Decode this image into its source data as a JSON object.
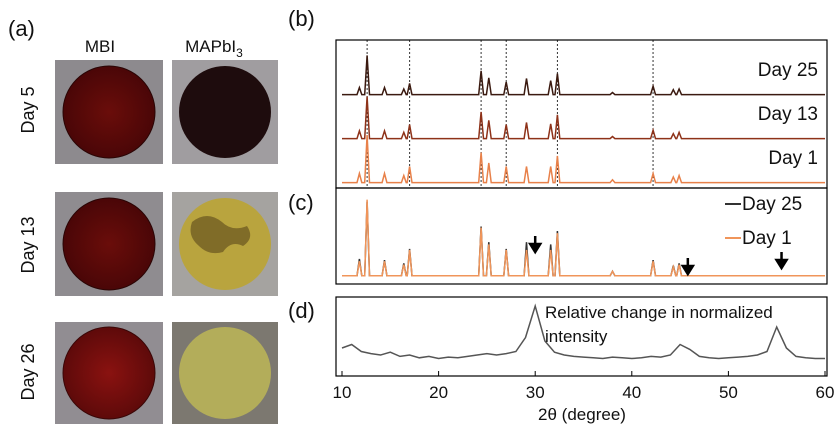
{
  "panel_a": {
    "label": "(a)",
    "columns": [
      {
        "text": "MBI"
      },
      {
        "text": "MAPbI",
        "subscript": "3"
      }
    ],
    "rows": [
      "Day 5",
      "Day 13",
      "Day 26"
    ]
  },
  "chart_data": [
    {
      "type": "line",
      "label": "(b)",
      "xlim": [
        10,
        60
      ],
      "reference_lines": [
        12.6,
        17,
        24.4,
        27,
        32.3,
        42.2
      ],
      "x": [
        10,
        11.55,
        11.8,
        12.05,
        12.35,
        12.6,
        12.85,
        14.15,
        14.4,
        14.65,
        16.15,
        16.4,
        16.65,
        16.75,
        17,
        17.25,
        24.15,
        24.4,
        24.65,
        24.95,
        25.2,
        25.45,
        26.75,
        27,
        27.25,
        28.85,
        29.1,
        29.35,
        31.35,
        31.6,
        31.85,
        32.05,
        32.3,
        32.55,
        37.75,
        38,
        38.25,
        41.95,
        42.2,
        42.45,
        44.05,
        44.3,
        44.55,
        44.65,
        44.9,
        45.15,
        60
      ],
      "series": [
        {
          "name": "Day 25",
          "color": "#3b1a10",
          "values": [
            2,
            2,
            12,
            2,
            2,
            58,
            2,
            2,
            12,
            2,
            2,
            10,
            2,
            2,
            18,
            2,
            2,
            36,
            2,
            2,
            26,
            2,
            2,
            20,
            2,
            2,
            25,
            2,
            2,
            22,
            2,
            2,
            32,
            2,
            2,
            5,
            2,
            2,
            14,
            2,
            2,
            9,
            2,
            2,
            10,
            2,
            2
          ]
        },
        {
          "name": "Day 13",
          "color": "#8e3219",
          "values": [
            2,
            2,
            13,
            2,
            2,
            62,
            2,
            2,
            13,
            2,
            2,
            11,
            2,
            2,
            22,
            2,
            2,
            40,
            2,
            2,
            28,
            2,
            2,
            22,
            2,
            2,
            25,
            2,
            2,
            23,
            2,
            2,
            36,
            2,
            2,
            5,
            2,
            2,
            14,
            2,
            2,
            9,
            2,
            2,
            11,
            2,
            2
          ]
        },
        {
          "name": "Day 1",
          "color": "#e8814a",
          "values": [
            2,
            2,
            15,
            2,
            2,
            70,
            2,
            2,
            15,
            2,
            2,
            12,
            2,
            2,
            25,
            2,
            2,
            45,
            2,
            2,
            30,
            2,
            2,
            25,
            2,
            2,
            25,
            2,
            2,
            25,
            2,
            2,
            40,
            2,
            2,
            6,
            2,
            2,
            15,
            2,
            2,
            10,
            2,
            2,
            12,
            2,
            2
          ]
        }
      ]
    },
    {
      "type": "line",
      "label": "(c)",
      "xlim": [
        10,
        60
      ],
      "legend": "upper right",
      "arrows": [
        30,
        45.8,
        55.5
      ],
      "x": [
        10,
        11.55,
        11.8,
        12.05,
        12.35,
        12.6,
        12.85,
        14.15,
        14.4,
        14.65,
        16.15,
        16.4,
        16.65,
        16.75,
        17,
        17.25,
        24.15,
        24.4,
        24.65,
        24.95,
        25.2,
        25.45,
        26.75,
        27,
        27.25,
        28.85,
        29.1,
        29.35,
        31.35,
        31.6,
        31.85,
        32.05,
        32.3,
        32.55,
        37.75,
        38,
        38.25,
        41.95,
        42.2,
        42.45,
        44.05,
        44.3,
        44.55,
        44.65,
        44.9,
        45.15,
        60
      ],
      "series": [
        {
          "name": "Day 25",
          "color": "#333333",
          "values": [
            2,
            2,
            17,
            2,
            2,
            68,
            2,
            2,
            16,
            2,
            2,
            13,
            2,
            2,
            26,
            2,
            2,
            46,
            2,
            2,
            32,
            2,
            2,
            26,
            2,
            2,
            32,
            2,
            2,
            30,
            2,
            2,
            42,
            2,
            2,
            6,
            2,
            2,
            16,
            2,
            2,
            11,
            2,
            2,
            13,
            2,
            2
          ]
        },
        {
          "name": "Day 1",
          "color": "#f0955a",
          "values": [
            2,
            2,
            15,
            2,
            2,
            70,
            2,
            2,
            15,
            2,
            2,
            12,
            2,
            2,
            25,
            2,
            2,
            45,
            2,
            2,
            30,
            2,
            2,
            25,
            2,
            2,
            25,
            2,
            2,
            25,
            2,
            2,
            40,
            2,
            2,
            6,
            2,
            2,
            15,
            2,
            2,
            10,
            2,
            2,
            12,
            2,
            2
          ]
        }
      ]
    },
    {
      "type": "line",
      "label": "(d)",
      "xlim": [
        10,
        60
      ],
      "xticks": [
        10,
        20,
        30,
        40,
        50,
        60
      ],
      "xlabel": "2θ (degree)",
      "annotation": [
        "Relative change in normalized",
        "intensity"
      ],
      "x": [
        10,
        11,
        12,
        13,
        14,
        15,
        16,
        17,
        18,
        19,
        20,
        21,
        22,
        23,
        24,
        25,
        26,
        27,
        28,
        29,
        30,
        31,
        32,
        33,
        34,
        35,
        36,
        37,
        38,
        39,
        40,
        41,
        42,
        43,
        44,
        45,
        46,
        47,
        48,
        49,
        50,
        51,
        52,
        53,
        54,
        55,
        56,
        57,
        58,
        59,
        60
      ],
      "series": [
        {
          "name": null,
          "color": "#555555",
          "values": [
            20,
            25,
            15,
            12,
            10,
            14,
            8,
            10,
            6,
            8,
            5,
            7,
            6,
            8,
            10,
            12,
            10,
            12,
            15,
            35,
            80,
            30,
            14,
            10,
            8,
            7,
            6,
            5,
            7,
            6,
            5,
            6,
            8,
            7,
            10,
            25,
            18,
            8,
            6,
            5,
            6,
            7,
            8,
            10,
            15,
            50,
            20,
            8,
            6,
            5,
            5
          ]
        }
      ]
    }
  ]
}
